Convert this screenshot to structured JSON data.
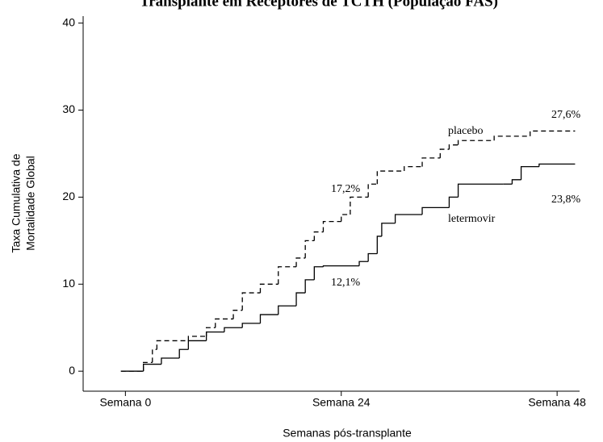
{
  "chart_data": {
    "type": "step",
    "title": "Transplante em Receptores de TCTH (População FAS)",
    "xlabel": "Semanas pós-transplante",
    "ylabel": [
      "Taxa Cumulativa de",
      "Mortalidade Global"
    ],
    "xlim": [
      -4.7,
      50.5
    ],
    "ylim": [
      -2.3,
      40.8
    ],
    "xticks": [
      {
        "value": 0,
        "label": "Semana 0"
      },
      {
        "value": 24,
        "label": "Semana 24"
      },
      {
        "value": 48,
        "label": "Semana 48"
      }
    ],
    "yticks": [
      0,
      10,
      20,
      30,
      40
    ],
    "grid": false,
    "series": [
      {
        "name": "placebo",
        "color": "#000000",
        "dash": true,
        "x": [
          -0.5,
          2,
          3,
          3.5,
          7,
          9,
          10,
          12,
          13,
          15,
          17,
          19,
          20,
          21,
          22,
          24,
          25,
          27,
          28,
          31,
          33,
          35,
          36,
          37,
          41,
          45,
          50
        ],
        "values": [
          0,
          1,
          2.5,
          3.5,
          4,
          5,
          6,
          7,
          9,
          10,
          12,
          13,
          15,
          16,
          17.2,
          18,
          20,
          21.5,
          23,
          23.5,
          24.5,
          25.5,
          26,
          26.5,
          27,
          27.6,
          27.6
        ]
      },
      {
        "name": "letermovir",
        "color": "#000000",
        "dash": false,
        "x": [
          -0.5,
          2,
          4,
          6,
          7,
          9,
          11,
          13,
          15,
          17,
          19,
          20,
          21,
          22,
          26,
          27,
          28,
          28.5,
          30,
          33,
          36,
          37,
          42,
          43,
          44,
          46,
          50
        ],
        "values": [
          0,
          0.8,
          1.5,
          2.5,
          3.5,
          4.5,
          5,
          5.5,
          6.5,
          7.5,
          9,
          10.5,
          12,
          12.1,
          12.6,
          13.5,
          15.5,
          17,
          18,
          18.8,
          20,
          21.5,
          21.5,
          22,
          23.5,
          23.8,
          23.8
        ]
      }
    ],
    "annotations": [
      "27,6%",
      "23,8%",
      "17,2%",
      "12,1%"
    ]
  }
}
